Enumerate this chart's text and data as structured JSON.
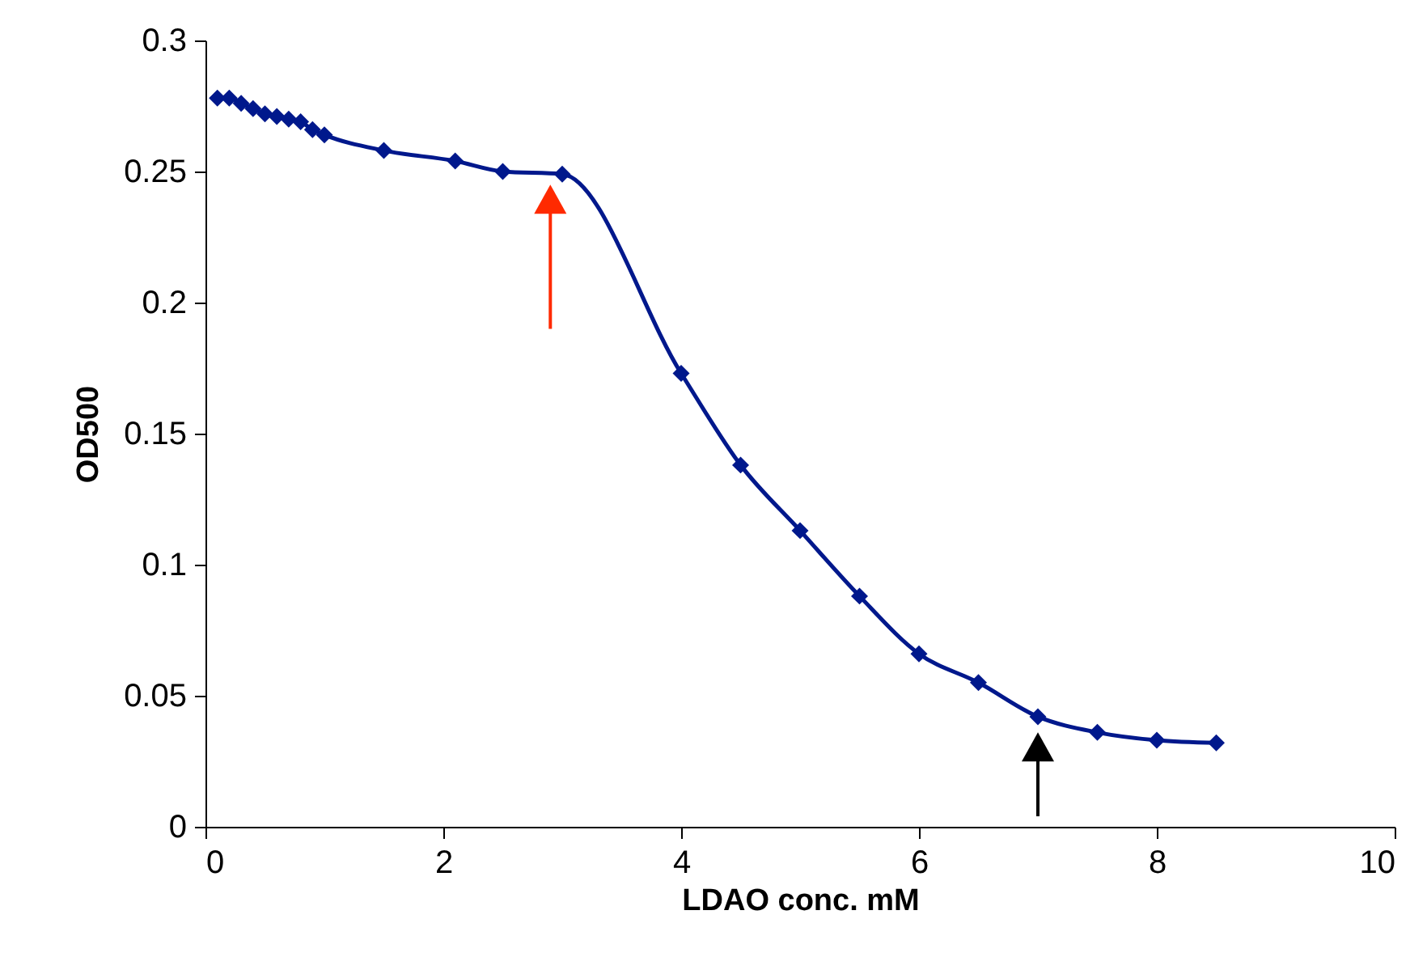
{
  "chart_data": {
    "type": "line",
    "xlabel": "LDAO conc. mM",
    "ylabel": "OD500",
    "x": [
      0.1,
      0.2,
      0.3,
      0.4,
      0.5,
      0.6,
      0.7,
      0.8,
      0.9,
      1.0,
      1.5,
      2.1,
      2.5,
      3,
      4,
      4.5,
      5,
      5.5,
      6,
      6.5,
      7,
      7.5,
      8,
      8.5
    ],
    "series": [
      {
        "color": "#00188c",
        "values": [
          0.278,
          0.278,
          0.276,
          0.274,
          0.272,
          0.271,
          0.27,
          0.269,
          0.266,
          0.264,
          0.258,
          0.254,
          0.25,
          0.249,
          0.173,
          0.138,
          0.113,
          0.088,
          0.066,
          0.055,
          0.042,
          0.036,
          0.033,
          0.032
        ]
      }
    ],
    "xlim": [
      0,
      10
    ],
    "xticks": [
      0,
      2,
      4,
      6,
      8,
      10
    ],
    "ylim": [
      0,
      0.3
    ],
    "yticks": [
      0,
      0.05,
      0.1,
      0.15,
      0.2,
      0.25,
      0.3
    ],
    "grid": false,
    "marker": "diamond",
    "line_style": "solid"
  }
}
